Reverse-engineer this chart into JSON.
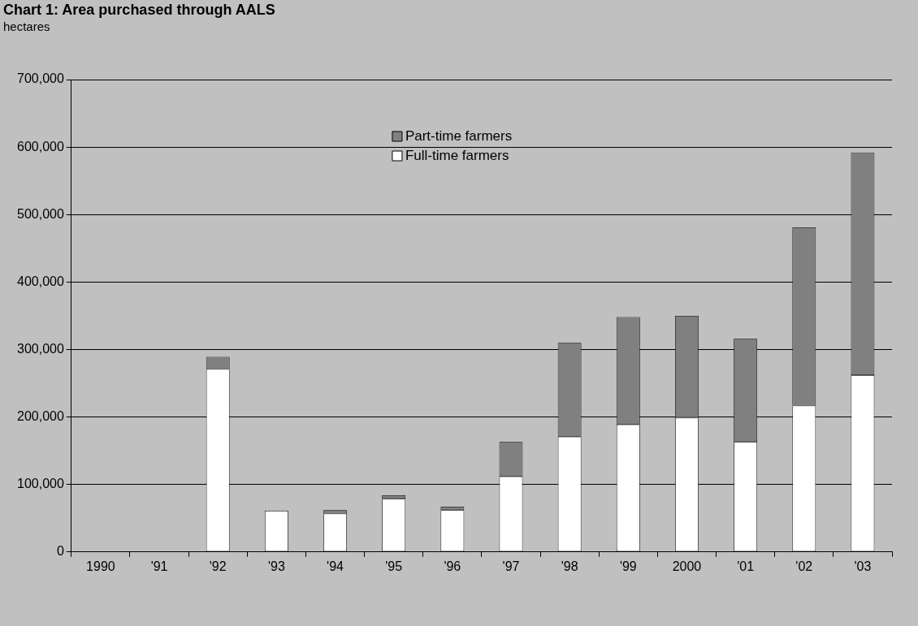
{
  "chart_data": {
    "type": "bar",
    "title": "Chart 1: Area purchased through AALS",
    "ylabel": "hectares",
    "categories": [
      "1990",
      "'91",
      "'92",
      "'93",
      "'94",
      "'95",
      "'96",
      "'97",
      "'98",
      "'99",
      "2000",
      "'01",
      "'02",
      "'03"
    ],
    "series": [
      {
        "name": "Full-time farmers",
        "color": "#ffffff",
        "values": [
          0,
          0,
          271000,
          61000,
          57000,
          79000,
          62000,
          112000,
          171000,
          189000,
          199000,
          163000,
          217000,
          262000
        ]
      },
      {
        "name": "Part-time farmers",
        "color": "#808080",
        "values": [
          0,
          0,
          18000,
          0,
          5000,
          5000,
          5000,
          51000,
          139000,
          159000,
          151000,
          153000,
          264000,
          330000
        ]
      }
    ],
    "stacked": true,
    "ylim": [
      0,
      700000
    ],
    "yticks": [
      0,
      {
        "value": 100000,
        "label": "100,000"
      },
      {
        "value": 200000,
        "label": "200,000"
      },
      {
        "value": 300000,
        "label": "300,000"
      },
      {
        "value": 400000,
        "label": "400,000"
      },
      {
        "value": 500000,
        "label": "500,000"
      },
      {
        "value": 600000,
        "label": "600,000"
      },
      {
        "value": 700000,
        "label": "700,000"
      }
    ],
    "grid": "y",
    "legend": "top"
  }
}
